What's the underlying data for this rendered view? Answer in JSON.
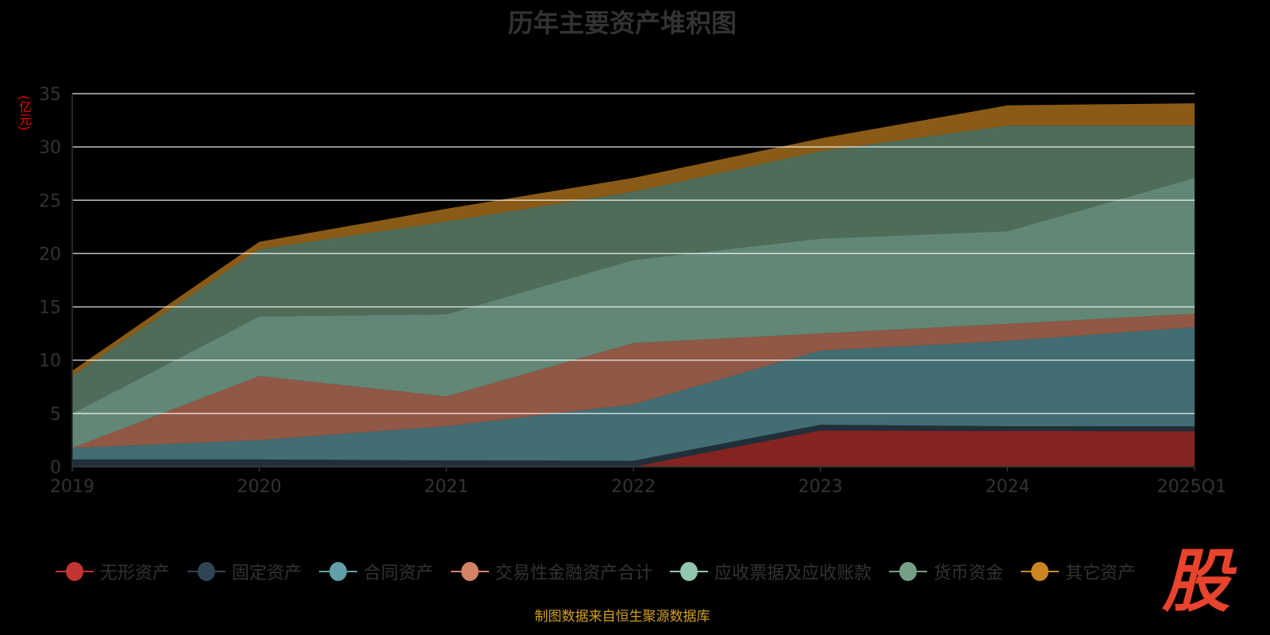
{
  "chart_data": {
    "type": "area",
    "stacked": true,
    "title": "历年主要资产堆积图",
    "ylabel": "(亿元)",
    "xlabel": "",
    "ylim": [
      0,
      35
    ],
    "yticks": [
      "0",
      "5",
      "10",
      "15",
      "20",
      "25",
      "30",
      "35"
    ],
    "categories": [
      "2019",
      "2020",
      "2021",
      "2022",
      "2023",
      "2024",
      "2025Q1"
    ],
    "grid": true,
    "legend_position": "bottom",
    "series": [
      {
        "name": "无形资产",
        "color": "#c23531",
        "values": [
          0,
          0,
          0,
          0,
          3.4,
          3.36,
          3.33
        ]
      },
      {
        "name": "固定资产",
        "color": "#2f4554",
        "values": [
          0.68,
          0.68,
          0.6,
          0.56,
          0.54,
          0.44,
          0.47
        ]
      },
      {
        "name": "合同资产",
        "color": "#61a0a8",
        "values": [
          1.08,
          1.82,
          3.2,
          5.29,
          6.96,
          8.0,
          9.3
        ]
      },
      {
        "name": "交易性金融资产合计",
        "color": "#d48265",
        "values": [
          0,
          6.0,
          2.8,
          5.75,
          1.6,
          1.6,
          1.25
        ]
      },
      {
        "name": "应收票据及应收账款",
        "color": "#91c7ae",
        "values": [
          3.24,
          5.6,
          7.7,
          7.8,
          8.9,
          8.7,
          12.75
        ]
      },
      {
        "name": "货币资金",
        "color": "#749f83",
        "values": [
          3.54,
          6.3,
          8.7,
          6.4,
          8.2,
          9.9,
          4.9
        ]
      },
      {
        "name": "其它资产",
        "color": "#ca8622",
        "values": [
          0.46,
          0.7,
          1.2,
          1.3,
          1.2,
          1.9,
          2.1
        ]
      }
    ]
  },
  "source": "制图数据来自恒生聚源数据库",
  "logo_text": "股"
}
